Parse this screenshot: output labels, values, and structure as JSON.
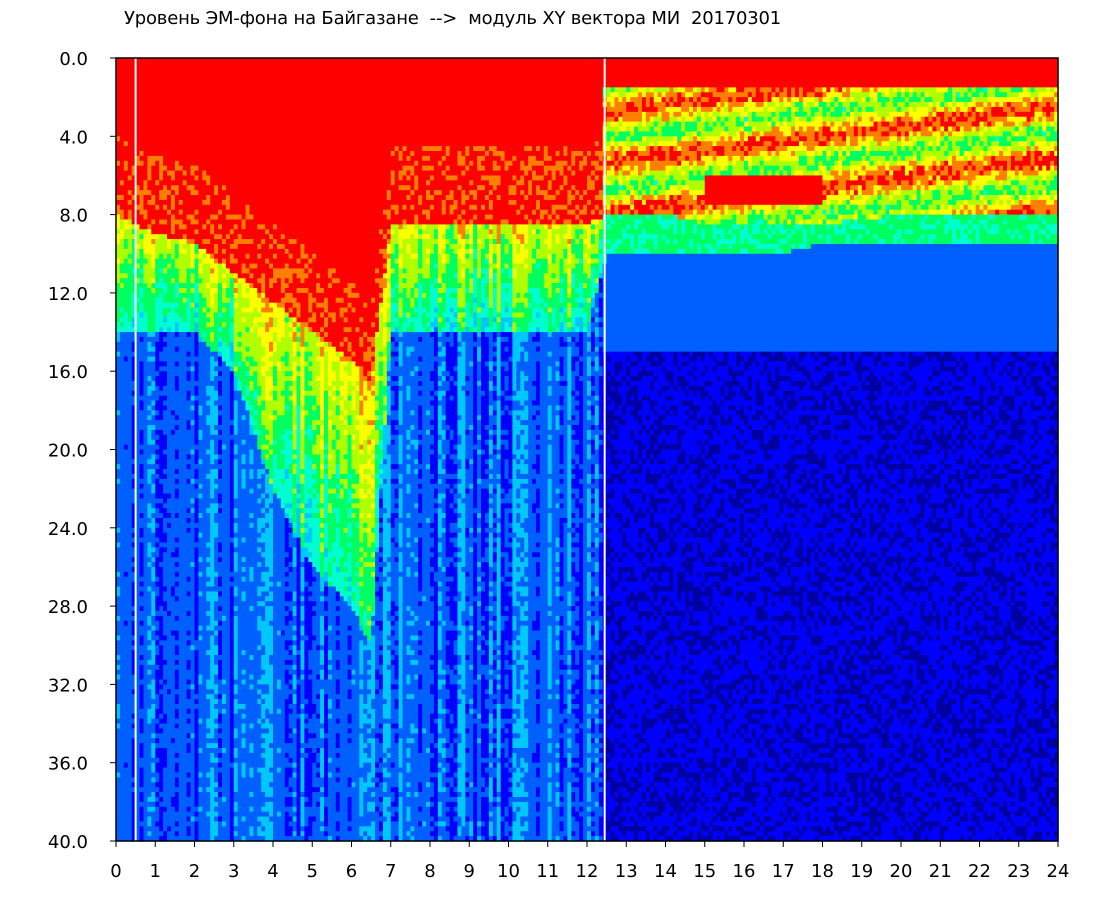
{
  "chart_data": {
    "type": "heatmap",
    "title": "Уровень ЭМ-фона на Байгазане  -->  модуль XY вектора МИ  20170301",
    "xlabel": "",
    "ylabel": "",
    "xlim": [
      0,
      24
    ],
    "ylim": [
      0,
      40
    ],
    "y_inverted": true,
    "x_ticks": [
      "0",
      "1",
      "2",
      "3",
      "4",
      "5",
      "6",
      "7",
      "8",
      "9",
      "10",
      "11",
      "12",
      "13",
      "14",
      "15",
      "16",
      "17",
      "18",
      "19",
      "20",
      "21",
      "22",
      "23",
      "24"
    ],
    "y_ticks": [
      "0.0",
      "4.0",
      "8.0",
      "12.0",
      "16.0",
      "20.0",
      "24.0",
      "28.0",
      "32.0",
      "36.0",
      "40.0"
    ],
    "grid": false,
    "colormap": [
      "#0000a0",
      "#0000ff",
      "#0060ff",
      "#00c8ff",
      "#00ffd0",
      "#00ff60",
      "#b0ff00",
      "#ffff00",
      "#ff8000",
      "#ff0000",
      "#ffffff"
    ],
    "gap_lines_x": [
      0.5,
      12.45
    ],
    "intensity_profile": {
      "hours": [
        0,
        0.5,
        1,
        2,
        3,
        4,
        5,
        6,
        6.5,
        7,
        7.5,
        8,
        9,
        10,
        11,
        12,
        12.5,
        13,
        14,
        15,
        16,
        17,
        18,
        20,
        22,
        24
      ],
      "red_band_bottom": [
        8,
        8.5,
        9,
        9.5,
        11,
        12.5,
        14,
        15.5,
        16.5,
        8.5,
        8.5,
        8.5,
        8.5,
        8.5,
        8.5,
        8.5,
        8,
        8,
        8,
        8.5,
        8.5,
        8.5,
        8.5,
        8,
        8,
        8
      ],
      "green_band_bottom": [
        14,
        14,
        14,
        14,
        16,
        22,
        26,
        28,
        30,
        14,
        14,
        14,
        14,
        14,
        14,
        14,
        10,
        10,
        10,
        10,
        10,
        10,
        9.5,
        9.5,
        9.5,
        9.5
      ]
    }
  }
}
